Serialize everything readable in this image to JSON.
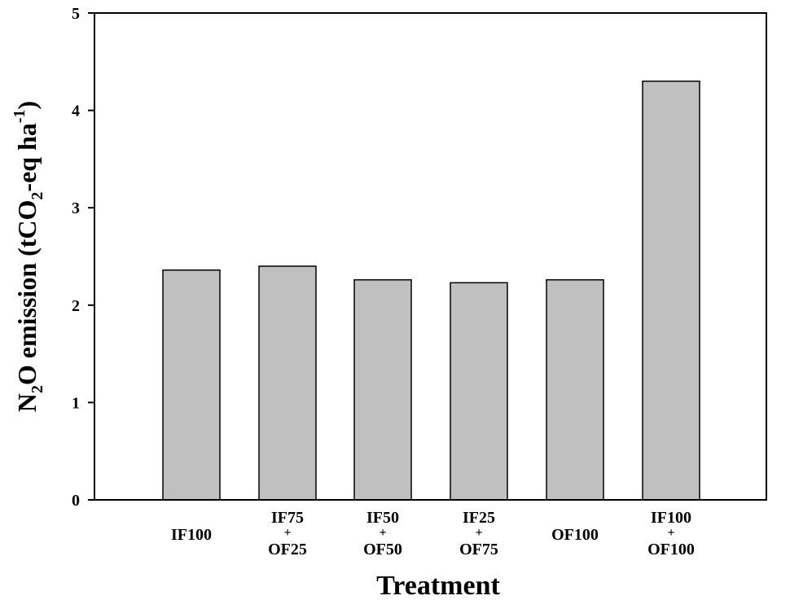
{
  "chart_data": {
    "type": "bar",
    "categories": [
      [
        "IF100"
      ],
      [
        "IF75",
        "+",
        "OF25"
      ],
      [
        "IF50",
        "+",
        "OF50"
      ],
      [
        "IF25",
        "+",
        "OF75"
      ],
      [
        "OF100"
      ],
      [
        "IF100",
        "+",
        "OF100"
      ]
    ],
    "values": [
      2.36,
      2.4,
      2.26,
      2.23,
      2.26,
      4.3
    ],
    "xlabel": "Treatment",
    "ylabel": {
      "parts": [
        "N",
        "2",
        "O emission (tCO",
        "2",
        "-eq ha",
        "-1",
        ")"
      ]
    },
    "ylim": [
      0,
      5
    ],
    "yticks": [
      0,
      1,
      2,
      3,
      4,
      5
    ],
    "grid": false,
    "bar_color": "#c0c0c0"
  }
}
